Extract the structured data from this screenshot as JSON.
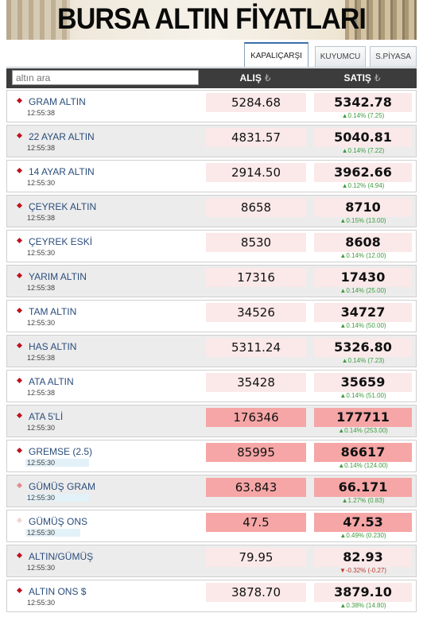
{
  "header": {
    "title": "BURSA ALTIN FİYATLARI"
  },
  "tabs": [
    {
      "label": "KAPALIÇARŞI",
      "active": true
    },
    {
      "label": "KUYUMCU",
      "active": false
    },
    {
      "label": "S.PİYASA",
      "active": false
    }
  ],
  "table": {
    "search_placeholder": "altın ara",
    "col_buy": "ALIŞ",
    "col_sell": "SATIŞ",
    "currency_symbol": "₺"
  },
  "rows": [
    {
      "name": "GRAM ALTIN",
      "time": "12:55:38",
      "buy": "5284.68",
      "sell": "5342.78",
      "change": "▲0.14% (7.25)",
      "dir": "up"
    },
    {
      "name": "22 AYAR ALTIN",
      "time": "12:55:38",
      "buy": "4831.57",
      "sell": "5040.81",
      "change": "▲0.14% (7.22)",
      "dir": "up"
    },
    {
      "name": "14 AYAR ALTIN",
      "time": "12:55:30",
      "buy": "2914.50",
      "sell": "3962.66",
      "change": "▲0.12% (4.94)",
      "dir": "up"
    },
    {
      "name": "ÇEYREK ALTIN",
      "time": "12:55:38",
      "buy": "8658",
      "sell": "8710",
      "change": "▲0.15% (13.00)",
      "dir": "up"
    },
    {
      "name": "ÇEYREK ESKİ",
      "time": "12:55:30",
      "buy": "8530",
      "sell": "8608",
      "change": "▲0.14% (12.00)",
      "dir": "up"
    },
    {
      "name": "YARIM ALTIN",
      "time": "12:55:38",
      "buy": "17316",
      "sell": "17430",
      "change": "▲0.14% (25.00)",
      "dir": "up"
    },
    {
      "name": "TAM ALTIN",
      "time": "12:55:30",
      "buy": "34526",
      "sell": "34727",
      "change": "▲0.14% (50.00)",
      "dir": "up"
    },
    {
      "name": "HAS ALTIN",
      "time": "12:55:38",
      "buy": "5311.24",
      "sell": "5326.80",
      "change": "▲0.14% (7.23)",
      "dir": "up"
    },
    {
      "name": "ATA ALTIN",
      "time": "12:55:38",
      "buy": "35428",
      "sell": "35659",
      "change": "▲0.14% (51.00)",
      "dir": "up"
    },
    {
      "name": "ATA 5'Lİ",
      "time": "12:55:30",
      "buy": "176346",
      "sell": "177711",
      "change": "▲0.14% (253.00)",
      "dir": "up"
    },
    {
      "name": "GREMSE (2.5)",
      "time": "12:55:30",
      "buy": "85995",
      "sell": "86617",
      "change": "▲0.14% (124.00)",
      "dir": "up"
    },
    {
      "name": "GÜMÜŞ GRAM",
      "time": "12:55:30",
      "buy": "63.843",
      "sell": "66.171",
      "change": "▲1.27% (0.83)",
      "dir": "up"
    },
    {
      "name": "GÜMÜŞ ONS",
      "time": "12:55:30",
      "buy": "47.5",
      "sell": "47.53",
      "change": "▲0.49% (0.230)",
      "dir": "up"
    },
    {
      "name": "ALTIN/GÜMÜŞ",
      "time": "12:55:30",
      "buy": "79.95",
      "sell": "82.93",
      "change": "▼-0.32% (-0.27)",
      "dir": "down"
    },
    {
      "name": "ALTIN ONS $",
      "time": "12:55:30",
      "buy": "3878.70",
      "sell": "3879.10",
      "change": "▲0.38% (14.80)",
      "dir": "up"
    }
  ]
}
